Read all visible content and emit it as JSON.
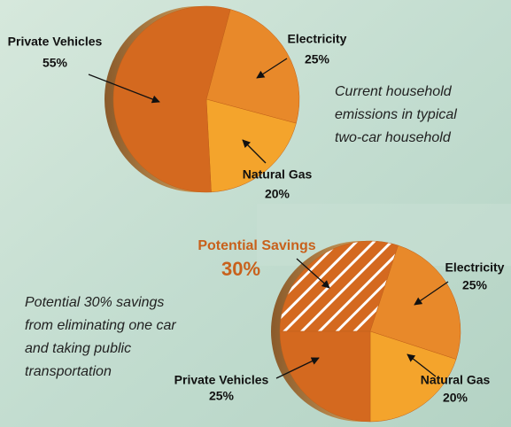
{
  "chart_data": [
    {
      "type": "pie",
      "categories": [
        "Electricity",
        "Natural Gas",
        "Private Vehicles"
      ],
      "values": [
        25,
        20,
        55
      ],
      "value_labels": [
        "25%",
        "20%",
        "55%"
      ],
      "colors": [
        "#e8892a",
        "#f4a42c",
        "#d4691f"
      ],
      "hatch": [
        false,
        false,
        false
      ],
      "annotation": [
        "Current household",
        "emissions in typical",
        "two-car household"
      ]
    },
    {
      "type": "pie",
      "categories": [
        "Potential Savings",
        "Electricity",
        "Natural Gas",
        "Private Vehicles"
      ],
      "values": [
        30,
        25,
        20,
        25
      ],
      "value_labels": [
        "30%",
        "25%",
        "20%",
        "25%"
      ],
      "colors": [
        "#d4691f",
        "#e8892a",
        "#f4a42c",
        "#d4691f"
      ],
      "hatch": [
        true,
        false,
        false,
        false
      ],
      "annotation": [
        "Potential 30% savings",
        "from eliminating one car",
        "and taking public",
        "transportation"
      ]
    }
  ]
}
